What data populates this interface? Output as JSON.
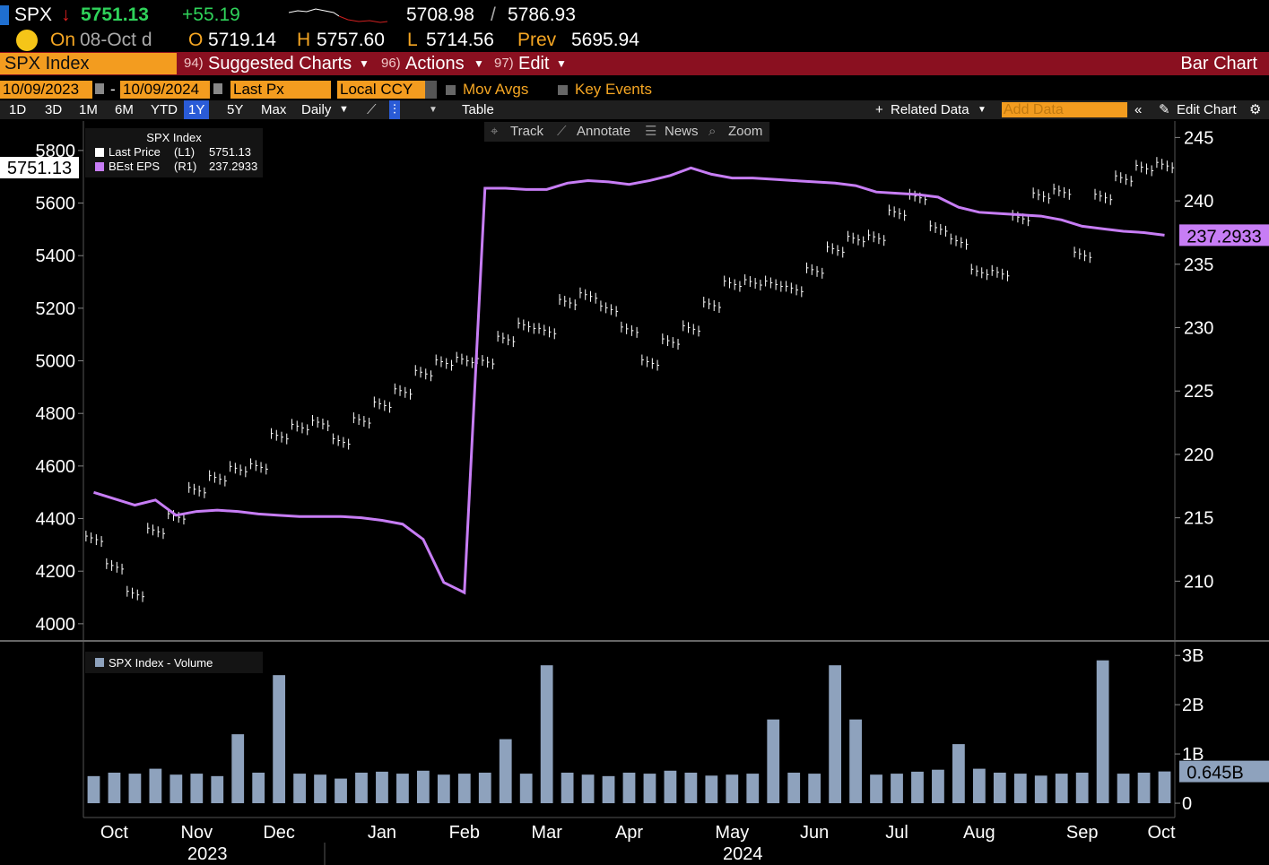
{
  "header": {
    "ticker": "SPX",
    "arrow": "↓",
    "last": "5751.13",
    "change": "+55.19",
    "range_low": "5708.98",
    "range_sep": "/",
    "range_high": "5786.93",
    "on": "On",
    "date": "08-Oct d",
    "open_label": "O",
    "open": "5719.14",
    "high_label": "H",
    "high": "5757.60",
    "low_label": "L",
    "low": "5714.56",
    "prev_label": "Prev",
    "prev": "5695.94"
  },
  "menu": {
    "security": "SPX Index",
    "suggested": {
      "num": "94)",
      "label": "Suggested Charts"
    },
    "actions": {
      "num": "96)",
      "label": "Actions"
    },
    "edit": {
      "num": "97)",
      "label": "Edit"
    },
    "chart_kind": "Bar Chart"
  },
  "controls": {
    "start": "10/09/2023",
    "dash": "-",
    "end": "10/09/2024",
    "field": "Last Px",
    "currency": "Local CCY",
    "mov_avgs": "Mov Avgs",
    "key_events": "Key Events"
  },
  "toolbar": {
    "ranges": [
      "1D",
      "3D",
      "1M",
      "6M",
      "YTD",
      "1Y",
      "5Y",
      "Max"
    ],
    "active_range": 5,
    "frequency": "Daily",
    "table": "Table",
    "related": "Related Data",
    "add_data": "Add Data",
    "edit_chart": "Edit Chart"
  },
  "chart_tools": [
    "Track",
    "Annotate",
    "News",
    "Zoom"
  ],
  "chart_data": [
    {
      "type": "line",
      "title": "SPX Index",
      "legend": "upper left",
      "grid": false,
      "ylim": [
        3945,
        5912
      ],
      "yticks": [
        4000,
        4200,
        4400,
        4600,
        4800,
        5000,
        5200,
        5400,
        5600,
        5800
      ],
      "y2lim": [
        205.5,
        246.3
      ],
      "y2ticks": [
        210,
        215,
        220,
        225,
        230,
        235,
        240,
        245
      ],
      "series": [
        {
          "name": "Last Price",
          "axis_tag": "(L1)",
          "style": "ticks",
          "color": "#ffffff",
          "values": [
            4330,
            4225,
            4120,
            4360,
            4415,
            4515,
            4560,
            4595,
            4605,
            4720,
            4755,
            4770,
            4700,
            4780,
            4840,
            4890,
            4960,
            5000,
            5010,
            5005,
            5090,
            5140,
            5120,
            5230,
            5255,
            5205,
            5125,
            5000,
            5080,
            5130,
            5220,
            5300,
            5305,
            5300,
            5280,
            5350,
            5430,
            5470,
            5475,
            5570,
            5630,
            5510,
            5460,
            5345,
            5340,
            5550,
            5635,
            5650,
            5410,
            5630,
            5700,
            5740,
            5751.13
          ]
        },
        {
          "name": "BEst EPS",
          "axis_tag": "(R1)",
          "axis": "y2",
          "style": "line",
          "color": "#c77df5",
          "values": [
            217,
            216.5,
            216,
            216.4,
            215.2,
            215.5,
            215.6,
            215.5,
            215.3,
            215.2,
            215.1,
            215.1,
            215.1,
            215,
            214.8,
            214.5,
            213.3,
            209.9,
            209.1,
            241,
            241,
            240.9,
            240.9,
            241.4,
            241.6,
            241.5,
            241.3,
            241.6,
            242,
            242.6,
            242.1,
            241.8,
            241.8,
            241.7,
            241.6,
            241.5,
            241.4,
            241.2,
            240.7,
            240.6,
            240.5,
            240.3,
            239.5,
            239.1,
            239,
            238.9,
            238.8,
            238.5,
            238,
            237.8,
            237.6,
            237.5,
            237.2933
          ]
        }
      ]
    },
    {
      "type": "bar",
      "grid": false,
      "categories": [
        null,
        "Oct",
        null,
        null,
        null,
        "Nov",
        null,
        null,
        null,
        "Dec",
        null,
        null,
        null,
        null,
        "Jan",
        null,
        null,
        null,
        "Feb",
        null,
        null,
        null,
        "Mar",
        null,
        null,
        null,
        "Apr",
        null,
        null,
        null,
        null,
        "May",
        null,
        null,
        null,
        "Jun",
        null,
        null,
        null,
        "Jul",
        null,
        null,
        null,
        "Aug",
        null,
        null,
        null,
        null,
        "Sep",
        null,
        null,
        null,
        "Oct"
      ],
      "years": [
        null,
        null,
        null,
        null,
        null,
        "2023",
        null,
        null,
        null,
        null,
        null,
        null,
        null,
        null,
        null,
        null,
        null,
        null,
        null,
        null,
        null,
        null,
        null,
        null,
        null,
        null,
        null,
        null,
        null,
        null,
        null,
        "2024",
        null,
        null,
        null,
        null,
        null,
        null,
        null,
        null,
        null,
        null,
        null,
        null,
        null,
        null,
        null,
        null,
        null,
        null,
        null,
        null,
        null
      ],
      "ylim": [
        -0.29,
        3.24
      ],
      "yticks": [
        0,
        {
          "value": 1,
          "label": "1B"
        },
        {
          "value": 2,
          "label": "2B"
        },
        {
          "value": 3,
          "label": "3B"
        }
      ],
      "series": [
        {
          "name": "SPX Index - Volume",
          "color": "#8ea2bd",
          "values": [
            0.55,
            0.62,
            0.6,
            0.7,
            0.58,
            0.6,
            0.55,
            1.4,
            0.62,
            2.6,
            0.6,
            0.58,
            0.5,
            0.62,
            0.64,
            0.6,
            0.66,
            0.58,
            0.6,
            0.62,
            1.3,
            0.6,
            2.8,
            0.62,
            0.58,
            0.55,
            0.62,
            0.6,
            0.66,
            0.62,
            0.56,
            0.58,
            0.6,
            1.7,
            0.62,
            0.6,
            2.8,
            1.7,
            0.58,
            0.6,
            0.64,
            0.68,
            1.2,
            0.7,
            0.62,
            0.6,
            0.56,
            0.6,
            0.62,
            2.9,
            0.6,
            0.62,
            0.645
          ],
          "value_labels": [
            null,
            null,
            null,
            null,
            null,
            null,
            null,
            null,
            null,
            null,
            null,
            null,
            null,
            null,
            null,
            null,
            null,
            null,
            null,
            null,
            null,
            null,
            null,
            null,
            null,
            null,
            null,
            null,
            null,
            null,
            null,
            null,
            null,
            null,
            null,
            null,
            null,
            null,
            null,
            null,
            null,
            null,
            null,
            null,
            null,
            null,
            null,
            null,
            null,
            null,
            null,
            null,
            "0.645B"
          ]
        }
      ]
    }
  ]
}
